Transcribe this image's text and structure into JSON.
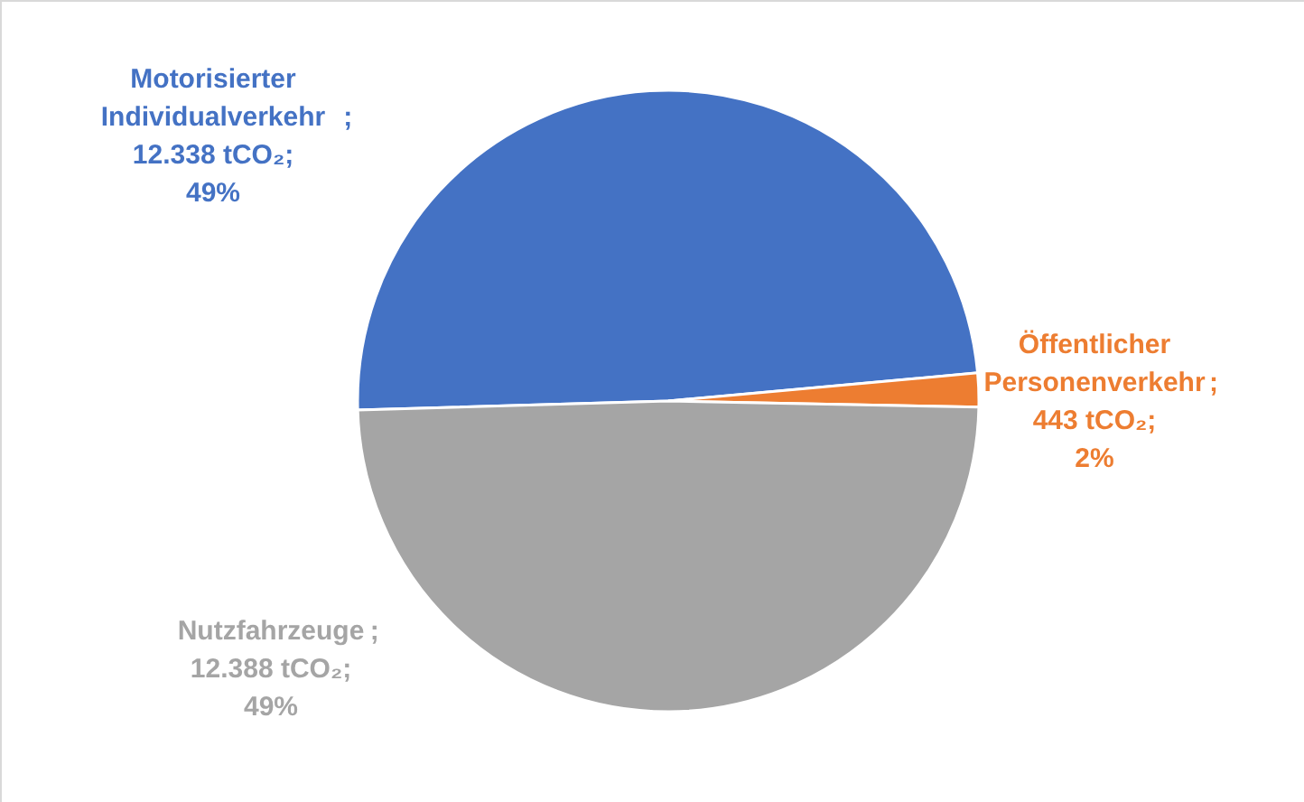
{
  "chart_data": {
    "type": "pie",
    "categories": [
      "Motorisierter Individualverkehr",
      "Öffentlicher Personenverkehr",
      "Nutzfahrzeuge"
    ],
    "values": [
      12338,
      443,
      12388
    ],
    "colors": [
      "#4472c4",
      "#ed7d31",
      "#a5a5a5"
    ],
    "value_labels": [
      "; 12.338 tCO₂; 49%",
      "; 443 tCO₂; 2%",
      "; 12.388 tCO₂; 49%"
    ]
  }
}
